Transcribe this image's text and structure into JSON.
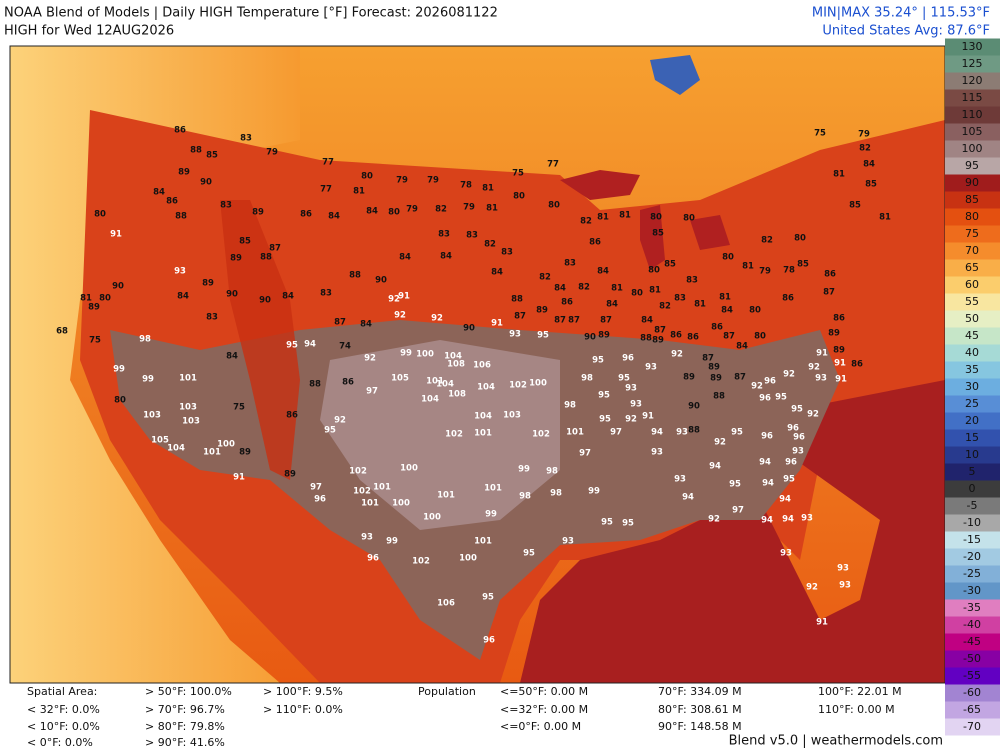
{
  "header": {
    "title": "NOAA Blend of Models | Daily HIGH Temperature [°F] Forecast: 2026081122",
    "subtitle": "HIGH for Wed 12AUG2026",
    "minmax": "MIN|MAX 35.24° | 115.53°F",
    "average": "United States Avg: 87.6°F"
  },
  "colorbar": {
    "labels": [
      130,
      125,
      120,
      115,
      110,
      105,
      100,
      95,
      90,
      85,
      80,
      75,
      70,
      65,
      60,
      55,
      50,
      45,
      40,
      35,
      30,
      25,
      20,
      15,
      10,
      5,
      0,
      -5,
      -10,
      -15,
      -20,
      -25,
      -30,
      -35,
      -40,
      -45,
      -50,
      -55,
      -60,
      -65,
      -70
    ],
    "colors": [
      "#5b8c74",
      "#6f9a84",
      "#8c7c74",
      "#7a4a44",
      "#6e3a38",
      "#8a6060",
      "#a08484",
      "#b8a6a6",
      "#a01c1c",
      "#c83212",
      "#e45010",
      "#ee6c1c",
      "#f58c2c",
      "#f9ae48",
      "#fbcd6c",
      "#f8e6a0",
      "#e6efc4",
      "#c6e6c8",
      "#a6dad6",
      "#86c6e0",
      "#6caee0",
      "#588ed6",
      "#4270c6",
      "#3252ae",
      "#283a8e",
      "#20236c",
      "#3c3c3c",
      "#7a7a7a",
      "#a8a8a8",
      "#c4e2ea",
      "#a2cae2",
      "#82b0d8",
      "#6296c8",
      "#e07ec0",
      "#d040a2",
      "#c00082",
      "#8800a4",
      "#6200c2",
      "#a284d2",
      "#c2a6e2",
      "#e2d4f2"
    ]
  },
  "stations": [
    86,
    88,
    85,
    83,
    79,
    89,
    90,
    84,
    88,
    91,
    80,
    86,
    83,
    89,
    85,
    87,
    89,
    88,
    77,
    81,
    80,
    79,
    79,
    78,
    81,
    75,
    77,
    77,
    86,
    84,
    84,
    80,
    79,
    82,
    79,
    81,
    80,
    80,
    83,
    83,
    82,
    83,
    84,
    84,
    84,
    82,
    83,
    86,
    82,
    81,
    81,
    80,
    85,
    80,
    80,
    81,
    82,
    80,
    81,
    85,
    81,
    85,
    84,
    75,
    79,
    82,
    93,
    89,
    90,
    90,
    84,
    83,
    84,
    83,
    88,
    90,
    87,
    84,
    92,
    91,
    92,
    92,
    90,
    91,
    93,
    95,
    99,
    100,
    104,
    108,
    106,
    101,
    104,
    104,
    102,
    100,
    108,
    104,
    105,
    92,
    97,
    86,
    88,
    95,
    94,
    74,
    84,
    101,
    99,
    80,
    103,
    103,
    103,
    105,
    104,
    101,
    100,
    89,
    75,
    86,
    95,
    92,
    91,
    89,
    97,
    96,
    102,
    102,
    101,
    101,
    100,
    100,
    101,
    101,
    99,
    98,
    98,
    98,
    99,
    104,
    103,
    102,
    101,
    102,
    101,
    97,
    99,
    93,
    95,
    95,
    99,
    96,
    102,
    100,
    101,
    95,
    106,
    95,
    96,
    100,
    93,
    95,
    96,
    98,
    95,
    93,
    98,
    95,
    95,
    97,
    94,
    93,
    88,
    92,
    95,
    93,
    93,
    94,
    94,
    95,
    94,
    92,
    97,
    94,
    94,
    94,
    93,
    93,
    93,
    92,
    93,
    91,
    95,
    96,
    93,
    94,
    96,
    96,
    96,
    95,
    92,
    96,
    95,
    92,
    87,
    96,
    92,
    93,
    92,
    91,
    91,
    86,
    91,
    89,
    89,
    86,
    87,
    86,
    85,
    78,
    79,
    83,
    83,
    81,
    81,
    84,
    80,
    86,
    84,
    87,
    86,
    86,
    86,
    87,
    84,
    80,
    87,
    89,
    89,
    89,
    88,
    90,
    93,
    92,
    91,
    92,
    93,
    89,
    88,
    89,
    84,
    82,
    86,
    89,
    88,
    87,
    87,
    87,
    87,
    90,
    81,
    80,
    81,
    84,
    84,
    80,
    85,
    82,
    98,
    99,
    75,
    89,
    81,
    80,
    68,
    90
  ],
  "footer": {
    "spatial_title": "Spatial Area:",
    "spatial": [
      "< 32°F: 0.0%",
      "< 10°F: 0.0%",
      "< 0°F: 0.0%",
      "> 50°F: 100.0%",
      "> 70°F: 96.7%",
      "> 80°F: 79.8%",
      "> 90°F: 41.6%",
      "> 100°F: 9.5%",
      "> 110°F: 0.0%"
    ],
    "population_title": "Population",
    "population": [
      "<=50°F: 0.00 M",
      "<=32°F: 0.00 M",
      "<=0°F: 0.00 M",
      "70°F: 334.09 M",
      "80°F: 308.61 M",
      "90°F: 148.58 M",
      "100°F: 22.01 M",
      "110°F: 0.00 M"
    ],
    "credit": "Blend v5.0 | weathermodels.com"
  }
}
